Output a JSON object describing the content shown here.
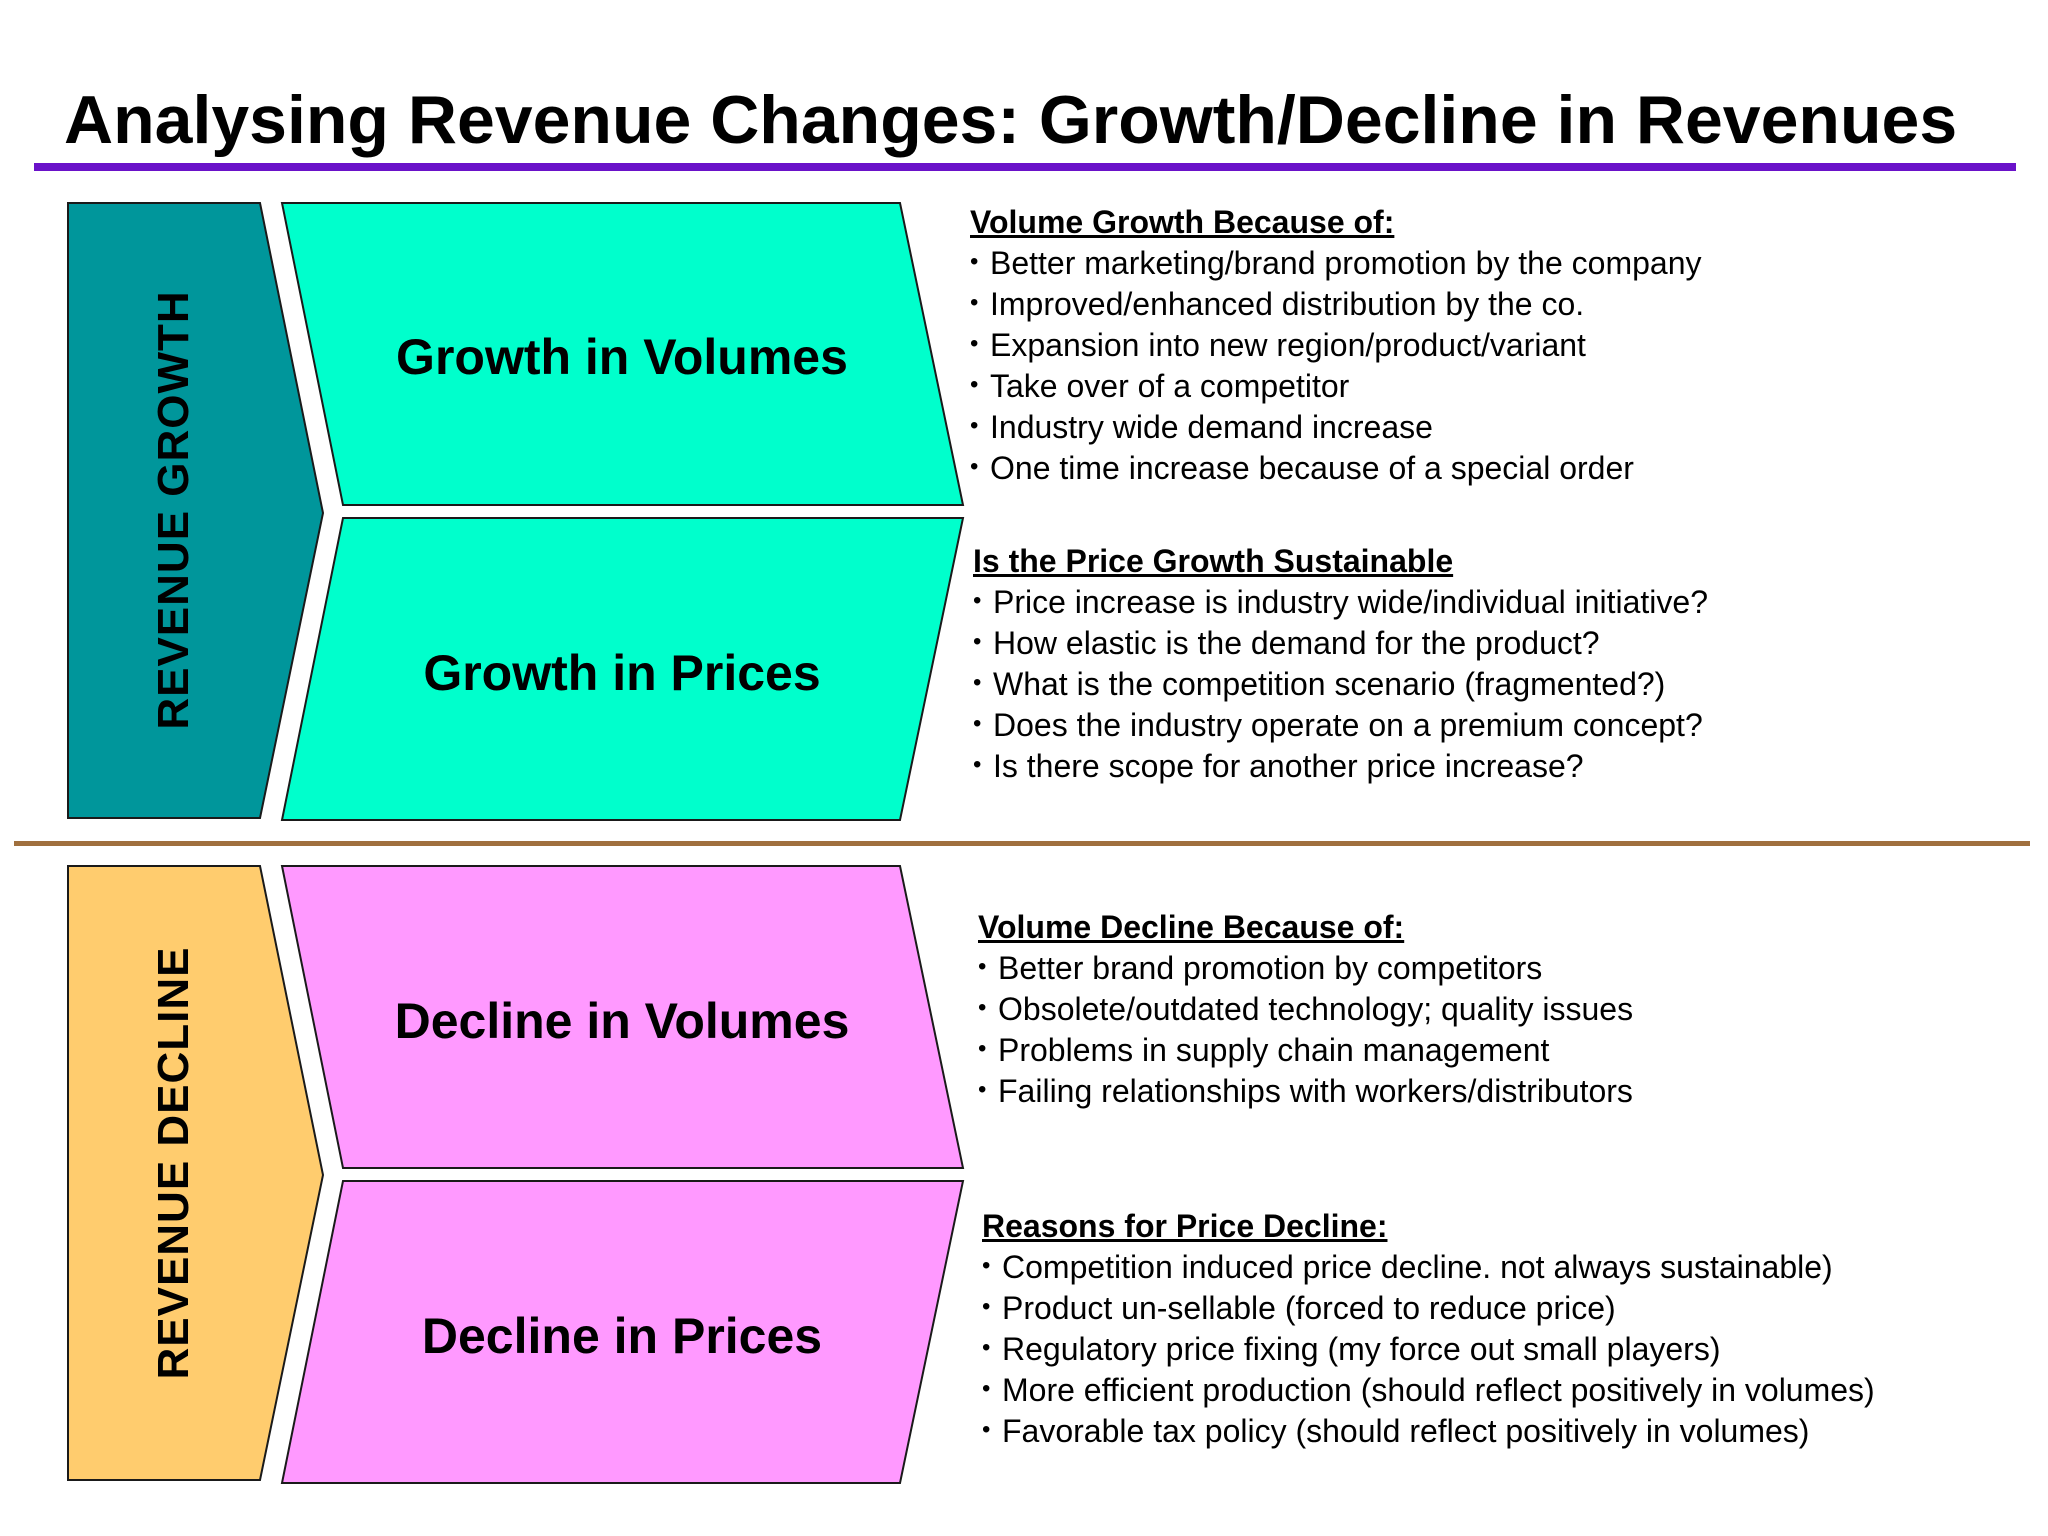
{
  "title": "Analysing Revenue Changes: Growth/Decline in Revenues",
  "colors": {
    "title_rule": "#6a12c9",
    "mid_rule": "#a0703e",
    "growth_side": "#00969b",
    "growth_box": "#00ffcc",
    "decline_side": "#ffcc6e",
    "decline_box": "#ff99ff"
  },
  "growth": {
    "side_label": "REVENUE GROWTH",
    "volume_box": "Growth in Volumes",
    "price_box": "Growth in Prices",
    "volume_info": {
      "heading": "Volume Growth Because of:",
      "items": [
        "Better marketing/brand promotion by the company",
        "Improved/enhanced distribution by the co.",
        "Expansion into new region/product/variant",
        "Take over of a competitor",
        "Industry wide demand increase",
        "One time increase because of a special order"
      ]
    },
    "price_info": {
      "heading": "Is the Price Growth Sustainable",
      "items": [
        "Price increase is industry wide/individual initiative?",
        "How elastic is the demand for the product?",
        "What is the competition scenario (fragmented?)",
        "Does the industry operate on a premium concept?",
        "Is there scope for another price increase?"
      ]
    }
  },
  "decline": {
    "side_label": "REVENUE DECLINE",
    "volume_box": "Decline in Volumes",
    "price_box": "Decline in Prices",
    "volume_info": {
      "heading": "Volume Decline Because of:",
      "items": [
        "Better brand promotion by competitors",
        "Obsolete/outdated technology; quality issues",
        "Problems in supply chain management",
        "Failing relationships with workers/distributors"
      ]
    },
    "price_info": {
      "heading": "Reasons for Price Decline:",
      "items": [
        "Competition induced price decline. not always sustainable)",
        "Product un-sellable (forced to reduce price)",
        "Regulatory price fixing (my force out small players)",
        "More efficient production (should reflect positively in volumes)",
        "Favorable tax policy (should reflect positively  in volumes)"
      ]
    }
  }
}
